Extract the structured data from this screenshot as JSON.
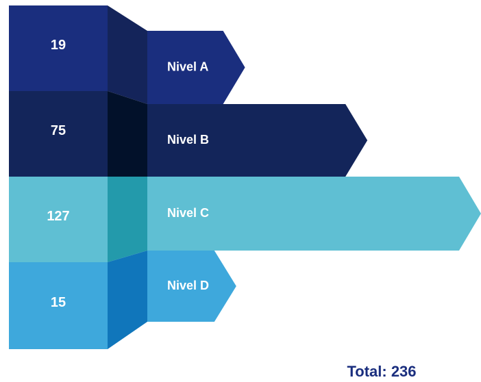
{
  "chart_data": {
    "type": "bar",
    "categories": [
      "Nivel A",
      "Nivel B",
      "Nivel C",
      "Nivel D"
    ],
    "values": [
      19,
      75,
      127,
      15
    ],
    "colors": [
      "#1a2e7e",
      "#13255a",
      "#5fbfd3",
      "#3ea8dc"
    ],
    "shade_colors": [
      "#14245a",
      "#02112a",
      "#239aab",
      "#1076bb"
    ],
    "total_label": "Total: 236"
  }
}
